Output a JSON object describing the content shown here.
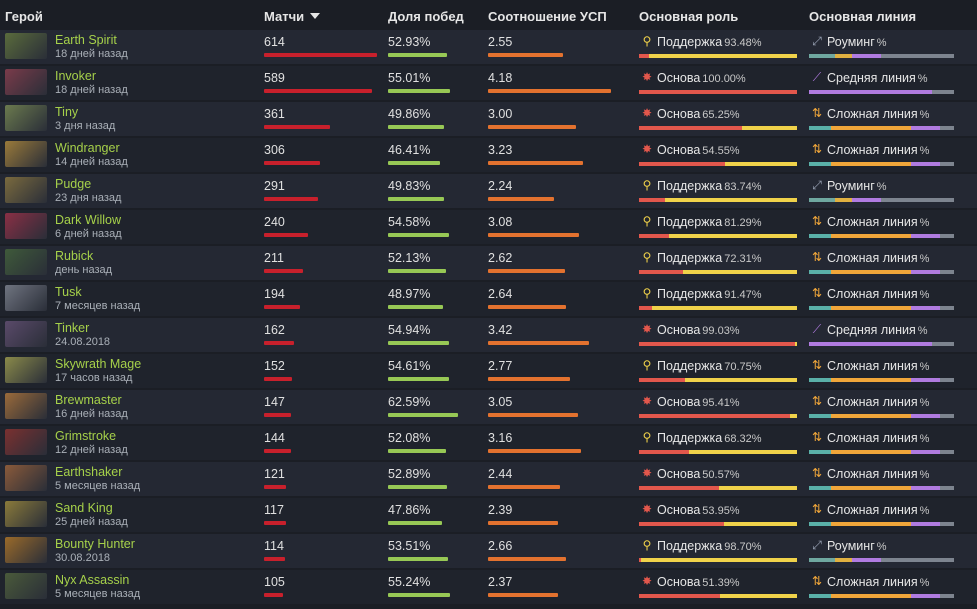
{
  "headers": {
    "hero": "Герой",
    "matches": "Матчи",
    "winrate": "Доля побед",
    "kda": "Соотношение УСП",
    "role": "Основная роль",
    "lane": "Основная линия"
  },
  "colors": {
    "name": "#a6d14a",
    "matches_bar": "#c8202c",
    "winrate_bar": "#97c855",
    "kda_bar": "#e3722f",
    "role_core": "#e2574c",
    "role_support": "#f0d24a",
    "lane_roam": "#9aa3b5",
    "lane_mid": "#b07be0",
    "lane_off": "#f0a63a"
  },
  "rows": [
    {
      "name": "Earth Spirit",
      "when": "18 дней назад",
      "matches": "614",
      "matches_v": 614,
      "winrate": "52.93%",
      "winrate_v": 52.93,
      "kda": "2.55",
      "kda_v": 2.55,
      "role": "Поддержка",
      "role_type": "support",
      "role_pct": "93.48%",
      "role_v": 93.48,
      "lane": "Роуминг",
      "lane_type": "roam",
      "pct": "%",
      "avatar": "#5a6b3c"
    },
    {
      "name": "Invoker",
      "when": "18 дней назад",
      "matches": "589",
      "matches_v": 589,
      "winrate": "55.01%",
      "winrate_v": 55.01,
      "kda": "4.18",
      "kda_v": 4.18,
      "role": "Основа",
      "role_type": "core",
      "role_pct": "100.00%",
      "role_v": 100,
      "lane": "Средняя линия",
      "lane_type": "mid",
      "pct": "%",
      "avatar": "#7a3b4a"
    },
    {
      "name": "Tiny",
      "when": "3 дня назад",
      "matches": "361",
      "matches_v": 361,
      "winrate": "49.86%",
      "winrate_v": 49.86,
      "kda": "3.00",
      "kda_v": 3.0,
      "role": "Основа",
      "role_type": "core",
      "role_pct": "65.25%",
      "role_v": 65.25,
      "lane": "Сложная линия",
      "lane_type": "off",
      "pct": "%",
      "avatar": "#6b7a4e"
    },
    {
      "name": "Windranger",
      "when": "14 дней назад",
      "matches": "306",
      "matches_v": 306,
      "winrate": "46.41%",
      "winrate_v": 46.41,
      "kda": "3.23",
      "kda_v": 3.23,
      "role": "Основа",
      "role_type": "core",
      "role_pct": "54.55%",
      "role_v": 54.55,
      "lane": "Сложная линия",
      "lane_type": "off",
      "pct": "%",
      "avatar": "#9a7a3a"
    },
    {
      "name": "Pudge",
      "when": "23 дня назад",
      "matches": "291",
      "matches_v": 291,
      "winrate": "49.83%",
      "winrate_v": 49.83,
      "kda": "2.24",
      "kda_v": 2.24,
      "role": "Поддержка",
      "role_type": "support",
      "role_pct": "83.74%",
      "role_v": 83.74,
      "lane": "Роуминг",
      "lane_type": "roam",
      "pct": "%",
      "avatar": "#7a6a3e"
    },
    {
      "name": "Dark Willow",
      "when": "6 дней назад",
      "matches": "240",
      "matches_v": 240,
      "winrate": "54.58%",
      "winrate_v": 54.58,
      "kda": "3.08",
      "kda_v": 3.08,
      "role": "Поддержка",
      "role_type": "support",
      "role_pct": "81.29%",
      "role_v": 81.29,
      "lane": "Сложная линия",
      "lane_type": "off",
      "pct": "%",
      "avatar": "#8a2f45"
    },
    {
      "name": "Rubick",
      "when": "день назад",
      "matches": "211",
      "matches_v": 211,
      "winrate": "52.13%",
      "winrate_v": 52.13,
      "kda": "2.62",
      "kda_v": 2.62,
      "role": "Поддержка",
      "role_type": "support",
      "role_pct": "72.31%",
      "role_v": 72.31,
      "lane": "Сложная линия",
      "lane_type": "off",
      "pct": "%",
      "avatar": "#3f5a3a"
    },
    {
      "name": "Tusk",
      "when": "7 месяцев назад",
      "matches": "194",
      "matches_v": 194,
      "winrate": "48.97%",
      "winrate_v": 48.97,
      "kda": "2.64",
      "kda_v": 2.64,
      "role": "Поддержка",
      "role_type": "support",
      "role_pct": "91.47%",
      "role_v": 91.47,
      "lane": "Сложная линия",
      "lane_type": "off",
      "pct": "%",
      "avatar": "#6f7480"
    },
    {
      "name": "Tinker",
      "when": "24.08.2018",
      "matches": "162",
      "matches_v": 162,
      "winrate": "54.94%",
      "winrate_v": 54.94,
      "kda": "3.42",
      "kda_v": 3.42,
      "role": "Основа",
      "role_type": "core",
      "role_pct": "99.03%",
      "role_v": 99.03,
      "lane": "Средняя линия",
      "lane_type": "mid",
      "pct": "%",
      "avatar": "#5a4a6a"
    },
    {
      "name": "Skywrath Mage",
      "when": "17 часов назад",
      "matches": "152",
      "matches_v": 152,
      "winrate": "54.61%",
      "winrate_v": 54.61,
      "kda": "2.77",
      "kda_v": 2.77,
      "role": "Поддержка",
      "role_type": "support",
      "role_pct": "70.75%",
      "role_v": 70.75,
      "lane": "Сложная линия",
      "lane_type": "off",
      "pct": "%",
      "avatar": "#8a8a4a"
    },
    {
      "name": "Brewmaster",
      "when": "16 дней назад",
      "matches": "147",
      "matches_v": 147,
      "winrate": "62.59%",
      "winrate_v": 62.59,
      "kda": "3.05",
      "kda_v": 3.05,
      "role": "Основа",
      "role_type": "core",
      "role_pct": "95.41%",
      "role_v": 95.41,
      "lane": "Сложная линия",
      "lane_type": "off",
      "pct": "%",
      "avatar": "#9a6a3a"
    },
    {
      "name": "Grimstroke",
      "when": "12 дней назад",
      "matches": "144",
      "matches_v": 144,
      "winrate": "52.08%",
      "winrate_v": 52.08,
      "kda": "3.16",
      "kda_v": 3.16,
      "role": "Поддержка",
      "role_type": "support",
      "role_pct": "68.32%",
      "role_v": 68.32,
      "lane": "Сложная линия",
      "lane_type": "off",
      "pct": "%",
      "avatar": "#7a3030"
    },
    {
      "name": "Earthshaker",
      "when": "5 месяцев назад",
      "matches": "121",
      "matches_v": 121,
      "winrate": "52.89%",
      "winrate_v": 52.89,
      "kda": "2.44",
      "kda_v": 2.44,
      "role": "Основа",
      "role_type": "core",
      "role_pct": "50.57%",
      "role_v": 50.57,
      "lane": "Сложная линия",
      "lane_type": "off",
      "pct": "%",
      "avatar": "#8a5a3a"
    },
    {
      "name": "Sand King",
      "when": "25 дней назад",
      "matches": "117",
      "matches_v": 117,
      "winrate": "47.86%",
      "winrate_v": 47.86,
      "kda": "2.39",
      "kda_v": 2.39,
      "role": "Основа",
      "role_type": "core",
      "role_pct": "53.95%",
      "role_v": 53.95,
      "lane": "Сложная линия",
      "lane_type": "off",
      "pct": "%",
      "avatar": "#8a7a3a"
    },
    {
      "name": "Bounty Hunter",
      "when": "30.08.2018",
      "matches": "114",
      "matches_v": 114,
      "winrate": "53.51%",
      "winrate_v": 53.51,
      "kda": "2.66",
      "kda_v": 2.66,
      "role": "Поддержка",
      "role_type": "support",
      "role_pct": "98.70%",
      "role_v": 98.7,
      "lane": "Роуминг",
      "lane_type": "roam",
      "pct": "%",
      "avatar": "#9a6a2a"
    },
    {
      "name": "Nyx Assassin",
      "when": "5 месяцев назад",
      "matches": "105",
      "matches_v": 105,
      "winrate": "55.24%",
      "winrate_v": 55.24,
      "kda": "2.37",
      "kda_v": 2.37,
      "role": "Основа",
      "role_type": "core",
      "role_pct": "51.39%",
      "role_v": 51.39,
      "lane": "Сложная линия",
      "lane_type": "off",
      "pct": "%",
      "avatar": "#4a5a3a"
    }
  ]
}
